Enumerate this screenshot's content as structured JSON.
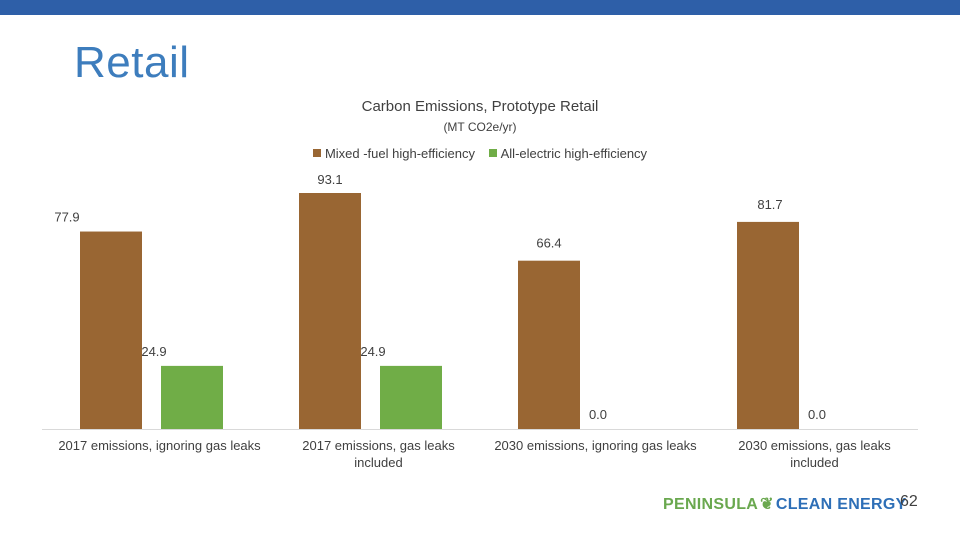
{
  "slide": {
    "title": "Retail",
    "page_number": "62",
    "logo": {
      "left": "PENINSULA",
      "right": "CLEAN ENERGY"
    }
  },
  "colors": {
    "topbar": "#2e5fa8",
    "mixed_fuel": "#996633",
    "all_electric": "#70ad47",
    "title": "#3d7dbd"
  },
  "chart_data": {
    "type": "bar",
    "title": "Carbon Emissions, Prototype Retail",
    "subtitle": "(MT CO2e/yr)",
    "categories": [
      [
        "2017 emissions, ignoring gas leaks"
      ],
      [
        "2017 emissions, gas leaks",
        "included"
      ],
      [
        "2030 emissions, ignoring gas leaks"
      ],
      [
        "2030 emissions, gas leaks",
        "included"
      ]
    ],
    "series": [
      {
        "name": "Mixed -fuel high-efficiency",
        "color": "#996633",
        "values": [
          77.9,
          93.1,
          66.4,
          81.7
        ],
        "labels": [
          "77.9",
          "93.1",
          "66.4",
          "81.7"
        ]
      },
      {
        "name": "All-electric high-efficiency",
        "color": "#70ad47",
        "values": [
          24.9,
          24.9,
          0.0,
          0.0
        ],
        "labels": [
          "24.9",
          "24.9",
          "0.0",
          "0.0"
        ]
      }
    ],
    "ylim": [
      0,
      93.1
    ],
    "legend": "top",
    "grid": false
  }
}
